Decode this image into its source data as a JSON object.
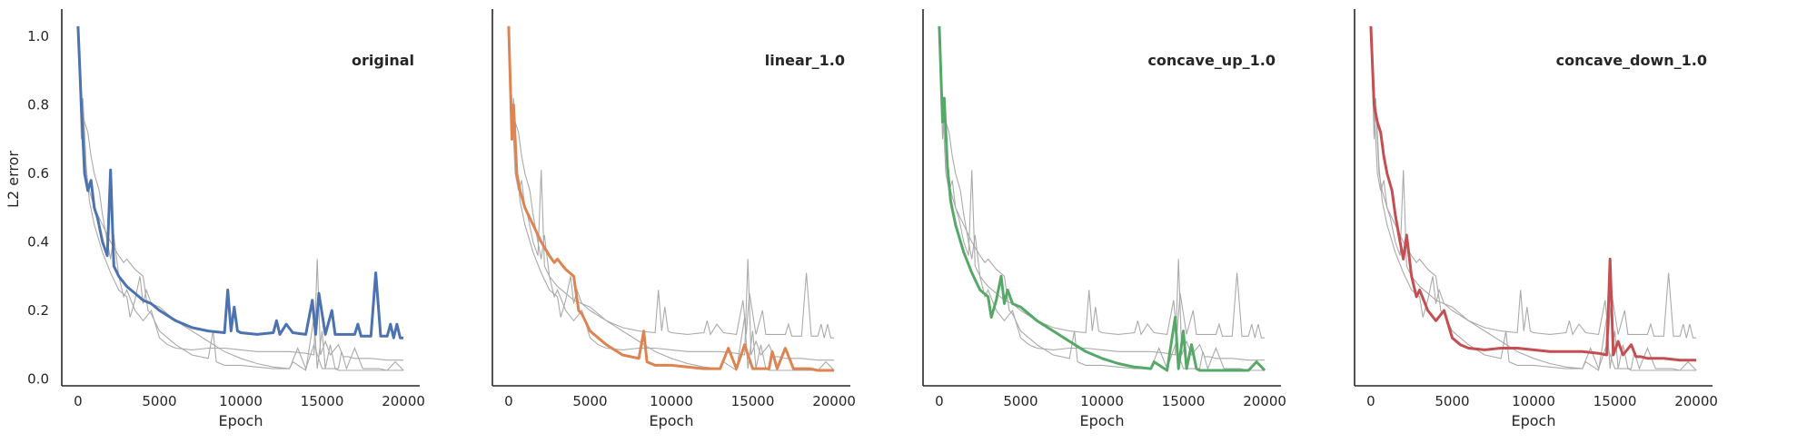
{
  "chart_data": [
    {
      "type": "line",
      "title": "original",
      "xlabel": "Epoch",
      "ylabel": "L2 error",
      "xlim": [
        -1000,
        21000
      ],
      "ylim": [
        -0.02,
        1.08
      ],
      "xticks": [
        "0",
        "5000",
        "10000",
        "15000",
        "20000"
      ],
      "yticks": [
        "0.0",
        "0.2",
        "0.4",
        "0.6",
        "0.8",
        "1.0"
      ],
      "grid": false,
      "highlight_color": "#4c72b0",
      "series": [
        {
          "x": [
            0,
            200,
            400,
            600,
            800,
            1000,
            1200,
            1500,
            1800,
            2000,
            2200,
            2500,
            3000,
            3500,
            4000,
            4500,
            5000,
            6000,
            7000,
            8000,
            9000,
            9200,
            9400,
            9600,
            9800,
            10000,
            11000,
            12000,
            12200,
            12400,
            12800,
            13200,
            14000,
            14400,
            14600,
            14800,
            15200,
            15600,
            15800,
            16000,
            17000,
            17200,
            17400,
            18000,
            18300,
            18600,
            19000,
            19200,
            19400,
            19600,
            19800,
            20000
          ],
          "y": [
            1.03,
            0.8,
            0.6,
            0.55,
            0.58,
            0.5,
            0.47,
            0.4,
            0.36,
            0.61,
            0.33,
            0.3,
            0.27,
            0.25,
            0.23,
            0.22,
            0.2,
            0.17,
            0.15,
            0.14,
            0.135,
            0.26,
            0.14,
            0.21,
            0.14,
            0.135,
            0.13,
            0.135,
            0.17,
            0.13,
            0.16,
            0.135,
            0.13,
            0.23,
            0.13,
            0.25,
            0.13,
            0.2,
            0.13,
            0.13,
            0.13,
            0.16,
            0.125,
            0.125,
            0.31,
            0.125,
            0.125,
            0.16,
            0.12,
            0.16,
            0.12,
            0.12
          ]
        },
        {
          "x": [
            0,
            500,
            1000,
            1500,
            2000,
            2500,
            3000,
            3500,
            4000,
            5000,
            6000,
            8000,
            10000,
            12000,
            14000,
            15000,
            16000,
            18000,
            20000
          ],
          "y": [
            1.03,
            0.62,
            0.5,
            0.44,
            0.38,
            0.33,
            0.3,
            0.27,
            0.25,
            0.22,
            0.19,
            0.14,
            0.1,
            0.085,
            0.075,
            0.07,
            0.065,
            0.06,
            0.055
          ]
        }
      ]
    },
    {
      "type": "line",
      "title": "linear_1.0",
      "xlabel": "Epoch",
      "ylabel": "",
      "xlim": [
        -1000,
        21000
      ],
      "ylim": [
        -0.02,
        1.08
      ],
      "xticks": [
        "0",
        "5000",
        "10000",
        "15000",
        "20000"
      ],
      "yticks": [],
      "grid": false,
      "highlight_color": "#dd8452",
      "series": [
        {
          "x": [
            0,
            200,
            300,
            500,
            700,
            1000,
            1500,
            2000,
            2500,
            2800,
            3000,
            3500,
            4000,
            4300,
            4500,
            5000,
            5500,
            6000,
            7000,
            8000,
            8300,
            8500,
            9000,
            10000,
            11000,
            12000,
            13000,
            13500,
            14000,
            14500,
            15000,
            15500,
            16000,
            16200,
            16500,
            17000,
            17500,
            18000,
            18500,
            19000,
            19500,
            20000
          ],
          "y": [
            1.03,
            0.7,
            0.8,
            0.6,
            0.55,
            0.5,
            0.45,
            0.4,
            0.36,
            0.34,
            0.35,
            0.32,
            0.3,
            0.2,
            0.19,
            0.14,
            0.12,
            0.1,
            0.07,
            0.06,
            0.14,
            0.05,
            0.04,
            0.04,
            0.035,
            0.03,
            0.03,
            0.09,
            0.03,
            0.1,
            0.03,
            0.03,
            0.03,
            0.08,
            0.03,
            0.09,
            0.03,
            0.03,
            0.03,
            0.025,
            0.025,
            0.025
          ]
        },
        {
          "x": [
            0,
            500,
            1000,
            1500,
            2000,
            3000,
            4000,
            5000,
            6000,
            8000,
            10000,
            12000,
            14000,
            16000,
            18000,
            20000
          ],
          "y": [
            1.03,
            0.65,
            0.5,
            0.42,
            0.36,
            0.28,
            0.23,
            0.19,
            0.16,
            0.13,
            0.125,
            0.12,
            0.12,
            0.12,
            0.12,
            0.12
          ]
        }
      ]
    },
    {
      "type": "line",
      "title": "concave_up_1.0",
      "xlabel": "Epoch",
      "ylabel": "",
      "xlim": [
        -1000,
        21000
      ],
      "ylim": [
        -0.02,
        1.08
      ],
      "xticks": [
        "0",
        "5000",
        "10000",
        "15000",
        "20000"
      ],
      "yticks": [],
      "grid": false,
      "highlight_color": "#55a868",
      "series": [
        {
          "x": [
            0,
            200,
            300,
            500,
            700,
            1000,
            1500,
            2000,
            2500,
            3000,
            3200,
            3500,
            3800,
            4000,
            4200,
            4500,
            5000,
            6000,
            7000,
            8000,
            9000,
            10000,
            11000,
            12000,
            13000,
            13200,
            14000,
            14500,
            14700,
            15000,
            15200,
            15500,
            15800,
            16000,
            17000,
            18000,
            19000,
            19500,
            20000
          ],
          "y": [
            1.03,
            0.75,
            0.82,
            0.62,
            0.52,
            0.45,
            0.37,
            0.31,
            0.26,
            0.24,
            0.18,
            0.23,
            0.3,
            0.22,
            0.26,
            0.22,
            0.21,
            0.17,
            0.14,
            0.11,
            0.08,
            0.06,
            0.045,
            0.035,
            0.03,
            0.05,
            0.025,
            0.18,
            0.03,
            0.14,
            0.03,
            0.1,
            0.03,
            0.025,
            0.025,
            0.025,
            0.025,
            0.05,
            0.025
          ]
        },
        {
          "x": [
            0,
            500,
            1000,
            1500,
            2000,
            3000,
            4000,
            5000,
            6000,
            8000,
            10000,
            12000,
            14000,
            16000,
            18000,
            20000
          ],
          "y": [
            1.03,
            0.66,
            0.52,
            0.43,
            0.37,
            0.29,
            0.24,
            0.2,
            0.17,
            0.14,
            0.13,
            0.13,
            0.12,
            0.12,
            0.12,
            0.12
          ]
        }
      ]
    },
    {
      "type": "line",
      "title": "concave_down_1.0",
      "xlabel": "Epoch",
      "ylabel": "",
      "xlim": [
        -1000,
        21000
      ],
      "ylim": [
        -0.02,
        1.08
      ],
      "xticks": [
        "0",
        "5000",
        "10000",
        "15000",
        "20000"
      ],
      "yticks": [],
      "grid": false,
      "highlight_color": "#c44e52",
      "series": [
        {
          "x": [
            0,
            200,
            400,
            600,
            800,
            1000,
            1300,
            1500,
            1800,
            2000,
            2200,
            2500,
            2800,
            3000,
            3500,
            4000,
            4500,
            5000,
            5500,
            6000,
            7000,
            8000,
            9000,
            10000,
            11000,
            12000,
            13000,
            14000,
            14500,
            14700,
            14900,
            15200,
            15500,
            16000,
            16300,
            16600,
            17000,
            18000,
            19000,
            19500,
            20000
          ],
          "y": [
            1.03,
            0.8,
            0.75,
            0.72,
            0.65,
            0.6,
            0.55,
            0.48,
            0.4,
            0.35,
            0.42,
            0.3,
            0.24,
            0.26,
            0.2,
            0.17,
            0.2,
            0.12,
            0.1,
            0.09,
            0.085,
            0.09,
            0.09,
            0.085,
            0.08,
            0.08,
            0.08,
            0.075,
            0.07,
            0.35,
            0.07,
            0.11,
            0.07,
            0.1,
            0.065,
            0.065,
            0.06,
            0.06,
            0.055,
            0.055,
            0.055
          ]
        },
        {
          "x": [
            0,
            500,
            1000,
            1500,
            2000,
            3000,
            4000,
            5000,
            6000,
            8000,
            10000,
            12000,
            14000,
            16000,
            18000,
            20000
          ],
          "y": [
            1.03,
            0.68,
            0.53,
            0.44,
            0.38,
            0.3,
            0.24,
            0.2,
            0.17,
            0.14,
            0.13,
            0.13,
            0.12,
            0.12,
            0.12,
            0.12
          ]
        }
      ]
    }
  ]
}
